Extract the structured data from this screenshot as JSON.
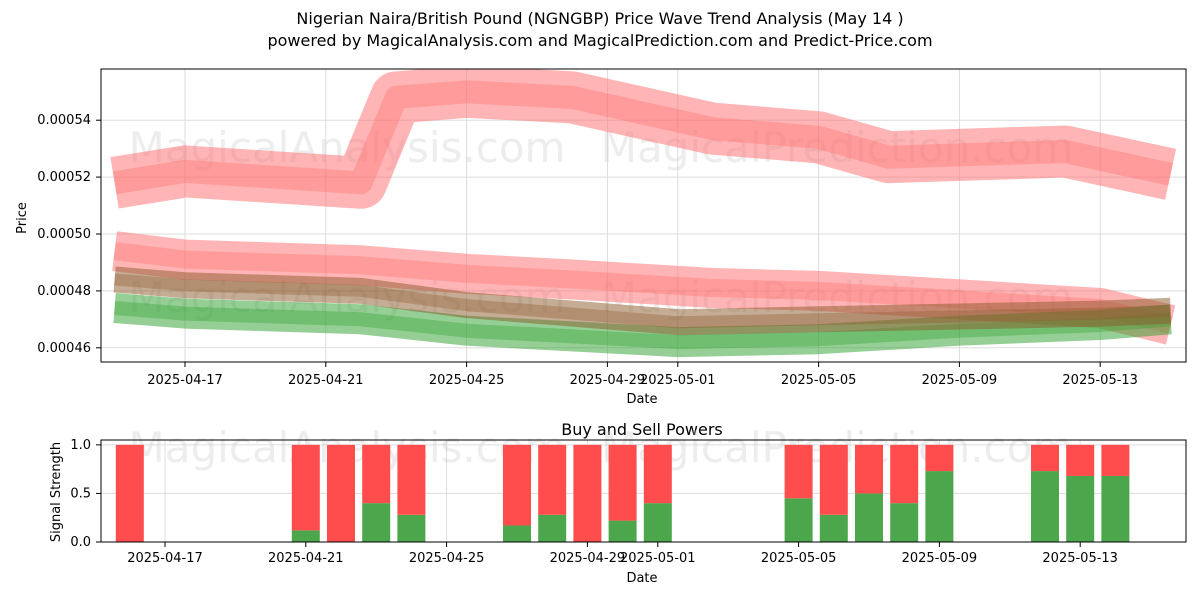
{
  "header": {
    "title_line1": "Nigerian Naira/British Pound (NGNGBP) Price Wave Trend Analysis (May 14 )",
    "title_line2": "powered by MagicalAnalysis.com and MagicalPrediction.com and Predict-Price.com"
  },
  "watermarks": {
    "left": "MagicalAnalysis.com",
    "right": "MagicalPrediction.com"
  },
  "colors": {
    "red_band": "#ff6b6b",
    "red_band_dark": "#ff3b3b",
    "green_band": "#2ca02c",
    "brown_band": "#8b5a2b",
    "buy_bar": "#4ca64c",
    "sell_bar": "#ff4c4c"
  },
  "chart_data": [
    {
      "type": "line",
      "title": "",
      "xlabel": "Date",
      "ylabel": "Price",
      "x_tick_labels": [
        "2025-04-17",
        "2025-04-21",
        "2025-04-25",
        "2025-04-29",
        "2025-05-01",
        "2025-05-05",
        "2025-05-09",
        "2025-05-13"
      ],
      "y_tick_labels": [
        "0.00046",
        "0.00048",
        "0.00050",
        "0.00052",
        "0.00054"
      ],
      "ylim": [
        0.000455,
        0.000558
      ],
      "grid": true,
      "bands": [
        {
          "name": "upper-red-wave",
          "color": "red",
          "x": [
            "2025-04-15",
            "2025-04-17",
            "2025-04-22",
            "2025-04-23",
            "2025-04-25",
            "2025-04-28",
            "2025-05-02",
            "2025-05-05",
            "2025-05-07",
            "2025-05-12",
            "2025-05-15"
          ],
          "y": [
            0.000518,
            0.000522,
            0.000518,
            0.000548,
            0.00055,
            0.000548,
            0.000537,
            0.000534,
            0.000527,
            0.000529,
            0.000521
          ]
        },
        {
          "name": "lower-red-wave",
          "color": "red",
          "x": [
            "2025-04-15",
            "2025-04-17",
            "2025-04-22",
            "2025-04-25",
            "2025-04-28",
            "2025-05-02",
            "2025-05-05",
            "2025-05-09",
            "2025-05-13",
            "2025-05-15"
          ],
          "y": [
            0.000494,
            0.000491,
            0.000489,
            0.000486,
            0.000484,
            0.000481,
            0.00048,
            0.000477,
            0.000474,
            0.000468
          ]
        },
        {
          "name": "green-wave",
          "color": "green",
          "x": [
            "2025-04-15",
            "2025-04-17",
            "2025-04-22",
            "2025-04-25",
            "2025-04-28",
            "2025-05-01",
            "2025-05-05",
            "2025-05-09",
            "2025-05-13",
            "2025-05-15"
          ],
          "y": [
            0.000474,
            0.000472,
            0.00047,
            0.000466,
            0.000464,
            0.000462,
            0.000463,
            0.000466,
            0.000468,
            0.00047
          ]
        },
        {
          "name": "brown-wave",
          "color": "brown",
          "x": [
            "2025-04-15",
            "2025-04-17",
            "2025-04-22",
            "2025-04-25",
            "2025-04-28",
            "2025-05-01",
            "2025-05-05",
            "2025-05-09",
            "2025-05-13",
            "2025-05-15"
          ],
          "y": [
            0.000484,
            0.000482,
            0.00048,
            0.000475,
            0.000472,
            0.000469,
            0.00047,
            0.000471,
            0.000472,
            0.000473
          ]
        }
      ]
    },
    {
      "type": "bar",
      "title": "Buy and Sell Powers",
      "xlabel": "Date",
      "ylabel": "Signal Strength",
      "x_tick_labels": [
        "2025-04-17",
        "2025-04-21",
        "2025-04-25",
        "2025-04-29",
        "2025-05-01",
        "2025-05-05",
        "2025-05-09",
        "2025-05-13"
      ],
      "y_tick_labels": [
        "0.0",
        "0.5",
        "1.0"
      ],
      "ylim": [
        0,
        1.05
      ],
      "grid": true,
      "categories": [
        "2025-04-16",
        "2025-04-21",
        "2025-04-22",
        "2025-04-23",
        "2025-04-24",
        "2025-04-27",
        "2025-04-28",
        "2025-04-29",
        "2025-04-30",
        "2025-05-01",
        "2025-05-05",
        "2025-05-06",
        "2025-05-07",
        "2025-05-08",
        "2025-05-09",
        "2025-05-12",
        "2025-05-13",
        "2025-05-14"
      ],
      "series": [
        {
          "name": "Buy",
          "values": [
            0.0,
            0.12,
            0.0,
            0.4,
            0.28,
            0.17,
            0.28,
            0.0,
            0.22,
            0.4,
            0.45,
            0.28,
            0.5,
            0.4,
            0.73,
            0.73,
            0.68,
            0.68
          ]
        },
        {
          "name": "Sell",
          "values": [
            1.0,
            0.88,
            1.0,
            0.6,
            0.72,
            0.83,
            0.72,
            1.0,
            0.78,
            0.6,
            0.55,
            0.72,
            0.5,
            0.6,
            0.27,
            0.27,
            0.32,
            0.32
          ]
        }
      ]
    }
  ]
}
